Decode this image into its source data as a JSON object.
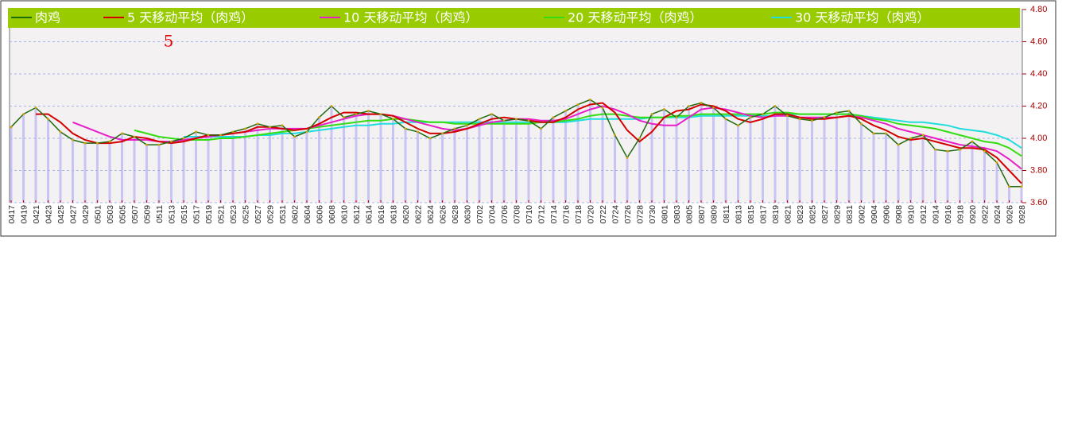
{
  "chart_data": {
    "type": "line",
    "annotation": "5",
    "categories": [
      "0417",
      "0419",
      "0421",
      "0423",
      "0425",
      "0427",
      "0429",
      "0501",
      "0503",
      "0505",
      "0507",
      "0509",
      "0511",
      "0513",
      "0515",
      "0517",
      "0519",
      "0521",
      "0523",
      "0525",
      "0527",
      "0529",
      "0531",
      "0602",
      "0604",
      "0606",
      "0608",
      "0610",
      "0612",
      "0614",
      "0616",
      "0618",
      "0620",
      "0622",
      "0624",
      "0626",
      "0628",
      "0630",
      "0702",
      "0704",
      "0706",
      "0708",
      "0710",
      "0712",
      "0714",
      "0716",
      "0718",
      "0720",
      "0722",
      "0724",
      "0726",
      "0728",
      "0730",
      "0801",
      "0803",
      "0805",
      "0807",
      "0809",
      "0811",
      "0813",
      "0815",
      "0817",
      "0819",
      "0821",
      "0823",
      "0825",
      "0827",
      "0829",
      "0831",
      "0902",
      "0904",
      "0906",
      "0908",
      "0910",
      "0912",
      "0914",
      "0916",
      "0918",
      "0920",
      "0922",
      "0924",
      "0926",
      "0928"
    ],
    "series": [
      {
        "name": "肉鸡",
        "color": "#1f6b10",
        "values": [
          4.07,
          4.15,
          4.19,
          4.12,
          4.04,
          3.99,
          3.97,
          3.97,
          3.98,
          4.03,
          4.01,
          3.96,
          3.96,
          3.98,
          4.0,
          4.04,
          4.02,
          4.02,
          4.04,
          4.06,
          4.09,
          4.07,
          4.08,
          4.01,
          4.04,
          4.13,
          4.2,
          4.13,
          4.15,
          4.17,
          4.15,
          4.12,
          4.06,
          4.04,
          4.0,
          4.03,
          4.06,
          4.08,
          4.12,
          4.15,
          4.11,
          4.12,
          4.11,
          4.06,
          4.13,
          4.17,
          4.21,
          4.24,
          4.19,
          4.02,
          3.88,
          4.0,
          4.15,
          4.18,
          4.13,
          4.2,
          4.22,
          4.19,
          4.12,
          4.08,
          4.13,
          4.15,
          4.2,
          4.14,
          4.12,
          4.11,
          4.13,
          4.16,
          4.17,
          4.09,
          4.03,
          4.03,
          3.96,
          4.0,
          4.02,
          3.93,
          3.92,
          3.93,
          3.98,
          3.92,
          3.85,
          3.7,
          3.7
        ]
      },
      {
        "name": "5 天移动平均（肉鸡）",
        "color": "#d40000",
        "values": [
          null,
          null,
          4.15,
          4.15,
          4.1,
          4.03,
          3.99,
          3.97,
          3.97,
          3.98,
          4.01,
          4.0,
          3.98,
          3.97,
          3.98,
          4.0,
          4.02,
          4.02,
          4.03,
          4.04,
          4.07,
          4.07,
          4.06,
          4.05,
          4.06,
          4.09,
          4.13,
          4.16,
          4.16,
          4.15,
          4.15,
          4.14,
          4.1,
          4.06,
          4.03,
          4.03,
          4.04,
          4.06,
          4.09,
          4.12,
          4.13,
          4.12,
          4.11,
          4.1,
          4.1,
          4.13,
          4.18,
          4.21,
          4.22,
          4.16,
          4.05,
          3.98,
          4.04,
          4.13,
          4.17,
          4.18,
          4.21,
          4.2,
          4.17,
          4.12,
          4.1,
          4.12,
          4.15,
          4.15,
          4.13,
          4.12,
          4.12,
          4.13,
          4.14,
          4.12,
          4.08,
          4.05,
          4.01,
          3.99,
          4.0,
          3.98,
          3.96,
          3.94,
          3.94,
          3.93,
          3.88,
          3.8,
          3.72
        ]
      },
      {
        "name": "10 天移动平均（肉鸡）",
        "color": "#e81ec8",
        "values": [
          null,
          null,
          null,
          null,
          null,
          4.1,
          4.07,
          4.04,
          4.01,
          3.99,
          3.99,
          3.99,
          3.98,
          3.98,
          3.99,
          4.0,
          4.01,
          4.02,
          4.03,
          4.04,
          4.05,
          4.06,
          4.06,
          4.06,
          4.06,
          4.08,
          4.1,
          4.12,
          4.14,
          4.15,
          4.15,
          4.14,
          4.12,
          4.1,
          4.08,
          4.06,
          4.05,
          4.06,
          4.08,
          4.1,
          4.11,
          4.12,
          4.12,
          4.11,
          4.11,
          4.12,
          4.15,
          4.18,
          4.2,
          4.18,
          4.15,
          4.11,
          4.09,
          4.08,
          4.08,
          4.13,
          4.18,
          4.19,
          4.18,
          4.16,
          4.14,
          4.13,
          4.14,
          4.14,
          4.13,
          4.13,
          4.13,
          4.13,
          4.14,
          4.13,
          4.11,
          4.09,
          4.06,
          4.04,
          4.02,
          4.0,
          3.98,
          3.96,
          3.95,
          3.94,
          3.92,
          3.87,
          3.81
        ]
      },
      {
        "name": "20 天移动平均（肉鸡）",
        "color": "#33dd11",
        "values": [
          null,
          null,
          null,
          null,
          null,
          null,
          null,
          null,
          null,
          null,
          4.05,
          4.03,
          4.01,
          4.0,
          3.99,
          3.99,
          3.99,
          4.0,
          4.0,
          4.01,
          4.02,
          4.03,
          4.04,
          4.05,
          4.06,
          4.07,
          4.08,
          4.09,
          4.1,
          4.11,
          4.11,
          4.12,
          4.12,
          4.11,
          4.1,
          4.1,
          4.09,
          4.09,
          4.09,
          4.09,
          4.09,
          4.09,
          4.09,
          4.1,
          4.1,
          4.11,
          4.12,
          4.14,
          4.15,
          4.15,
          4.14,
          4.13,
          4.13,
          4.13,
          4.14,
          4.14,
          4.15,
          4.15,
          4.15,
          4.15,
          4.15,
          4.15,
          4.16,
          4.16,
          4.15,
          4.15,
          4.15,
          4.15,
          4.15,
          4.14,
          4.12,
          4.11,
          4.09,
          4.08,
          4.07,
          4.06,
          4.04,
          4.02,
          4.0,
          3.98,
          3.97,
          3.94,
          3.89
        ]
      },
      {
        "name": "30 天移动平均（肉鸡）",
        "color": "#22dddd",
        "values": [
          null,
          null,
          null,
          null,
          null,
          null,
          null,
          null,
          null,
          null,
          null,
          null,
          null,
          null,
          4.01,
          4.01,
          4.01,
          4.01,
          4.01,
          4.01,
          4.02,
          4.02,
          4.03,
          4.03,
          4.04,
          4.05,
          4.06,
          4.07,
          4.08,
          4.08,
          4.09,
          4.09,
          4.1,
          4.1,
          4.1,
          4.1,
          4.1,
          4.1,
          4.1,
          4.1,
          4.1,
          4.1,
          4.1,
          4.1,
          4.1,
          4.1,
          4.11,
          4.12,
          4.12,
          4.12,
          4.12,
          4.12,
          4.13,
          4.13,
          4.13,
          4.13,
          4.14,
          4.14,
          4.14,
          4.14,
          4.14,
          4.14,
          4.14,
          4.15,
          4.15,
          4.15,
          4.15,
          4.15,
          4.15,
          4.14,
          4.13,
          4.12,
          4.11,
          4.1,
          4.1,
          4.09,
          4.08,
          4.06,
          4.05,
          4.04,
          4.02,
          3.99,
          3.94
        ]
      }
    ],
    "ylim": [
      3.6,
      4.8
    ],
    "yticks": [
      {
        "value": 3.6,
        "label": "3.60"
      },
      {
        "value": 3.8,
        "label": "3.80"
      },
      {
        "value": 4.0,
        "label": "4.00"
      },
      {
        "value": 4.2,
        "label": "4.20"
      },
      {
        "value": 4.4,
        "label": "4.40"
      },
      {
        "value": 4.6,
        "label": "4.60"
      },
      {
        "value": 4.8,
        "label": "4.80"
      }
    ],
    "grid": true,
    "legend": "top",
    "bar_color": "#c8c4f4",
    "legend_color": "#99cc00"
  }
}
